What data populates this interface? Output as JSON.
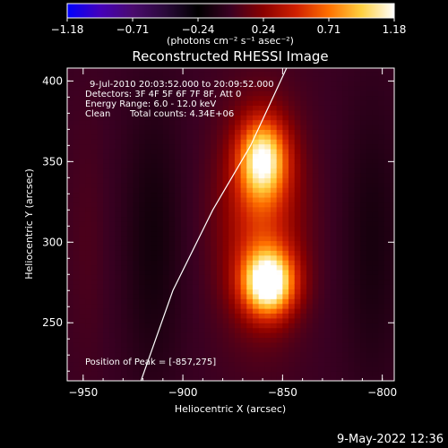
{
  "figure": {
    "colorbar": {
      "min": -1.18,
      "max": 1.18,
      "ticks": [
        "-1.18",
        "-0.71",
        "-0.24",
        "0.24",
        "0.71",
        "1.18"
      ],
      "unit_label": "(photons cm⁻² s⁻¹ asec⁻²)",
      "colormap": [
        "#0000ff",
        "#4400bb",
        "#4a0b6e",
        "#2a0a3a",
        "#000000",
        "#3a0022",
        "#8a0000",
        "#d02000",
        "#ff7000",
        "#ffd040",
        "#ffffff"
      ]
    },
    "footer_date": "9-May-2022 12:36"
  },
  "chart_data": {
    "type": "heatmap",
    "title": "Reconstructed RHESSI Image",
    "xlabel": "Heliocentric X (arcsec)",
    "ylabel": "Heliocentric Y (arcsec)",
    "xlim": [
      -958,
      -794
    ],
    "ylim": [
      214,
      408
    ],
    "xticks": [
      {
        "value": -950,
        "label": "−950"
      },
      {
        "value": -900,
        "label": "−900"
      },
      {
        "value": -850,
        "label": "−850"
      },
      {
        "value": -800,
        "label": "−800"
      }
    ],
    "yticks": [
      {
        "value": 250,
        "label": "250"
      },
      {
        "value": 300,
        "label": "300"
      },
      {
        "value": 350,
        "label": "350"
      },
      {
        "value": 400,
        "label": "400"
      }
    ],
    "annotations": {
      "time_range": "9-Jul-2010 20:03:52.000 to 20:09:52.000",
      "detectors": "Detectors: 3F 4F 5F 6F 7F 8F, Att 0",
      "energy_range": "Energy Range: 6.0 - 12.0 keV",
      "clean": "Clean",
      "total_counts": "Total counts: 4.34E+06",
      "peak_position": "Position of Peak = [-857,275]"
    },
    "sources": [
      {
        "x": -857,
        "y": 275,
        "peak": 1.18
      },
      {
        "x": -860,
        "y": 352,
        "peak": 0.93
      }
    ],
    "limb_curve": [
      {
        "x": -921,
        "y": 214
      },
      {
        "x": -905,
        "y": 270
      },
      {
        "x": -885,
        "y": 320
      },
      {
        "x": -866,
        "y": 360
      },
      {
        "x": -848,
        "y": 408
      }
    ],
    "grid": false
  }
}
